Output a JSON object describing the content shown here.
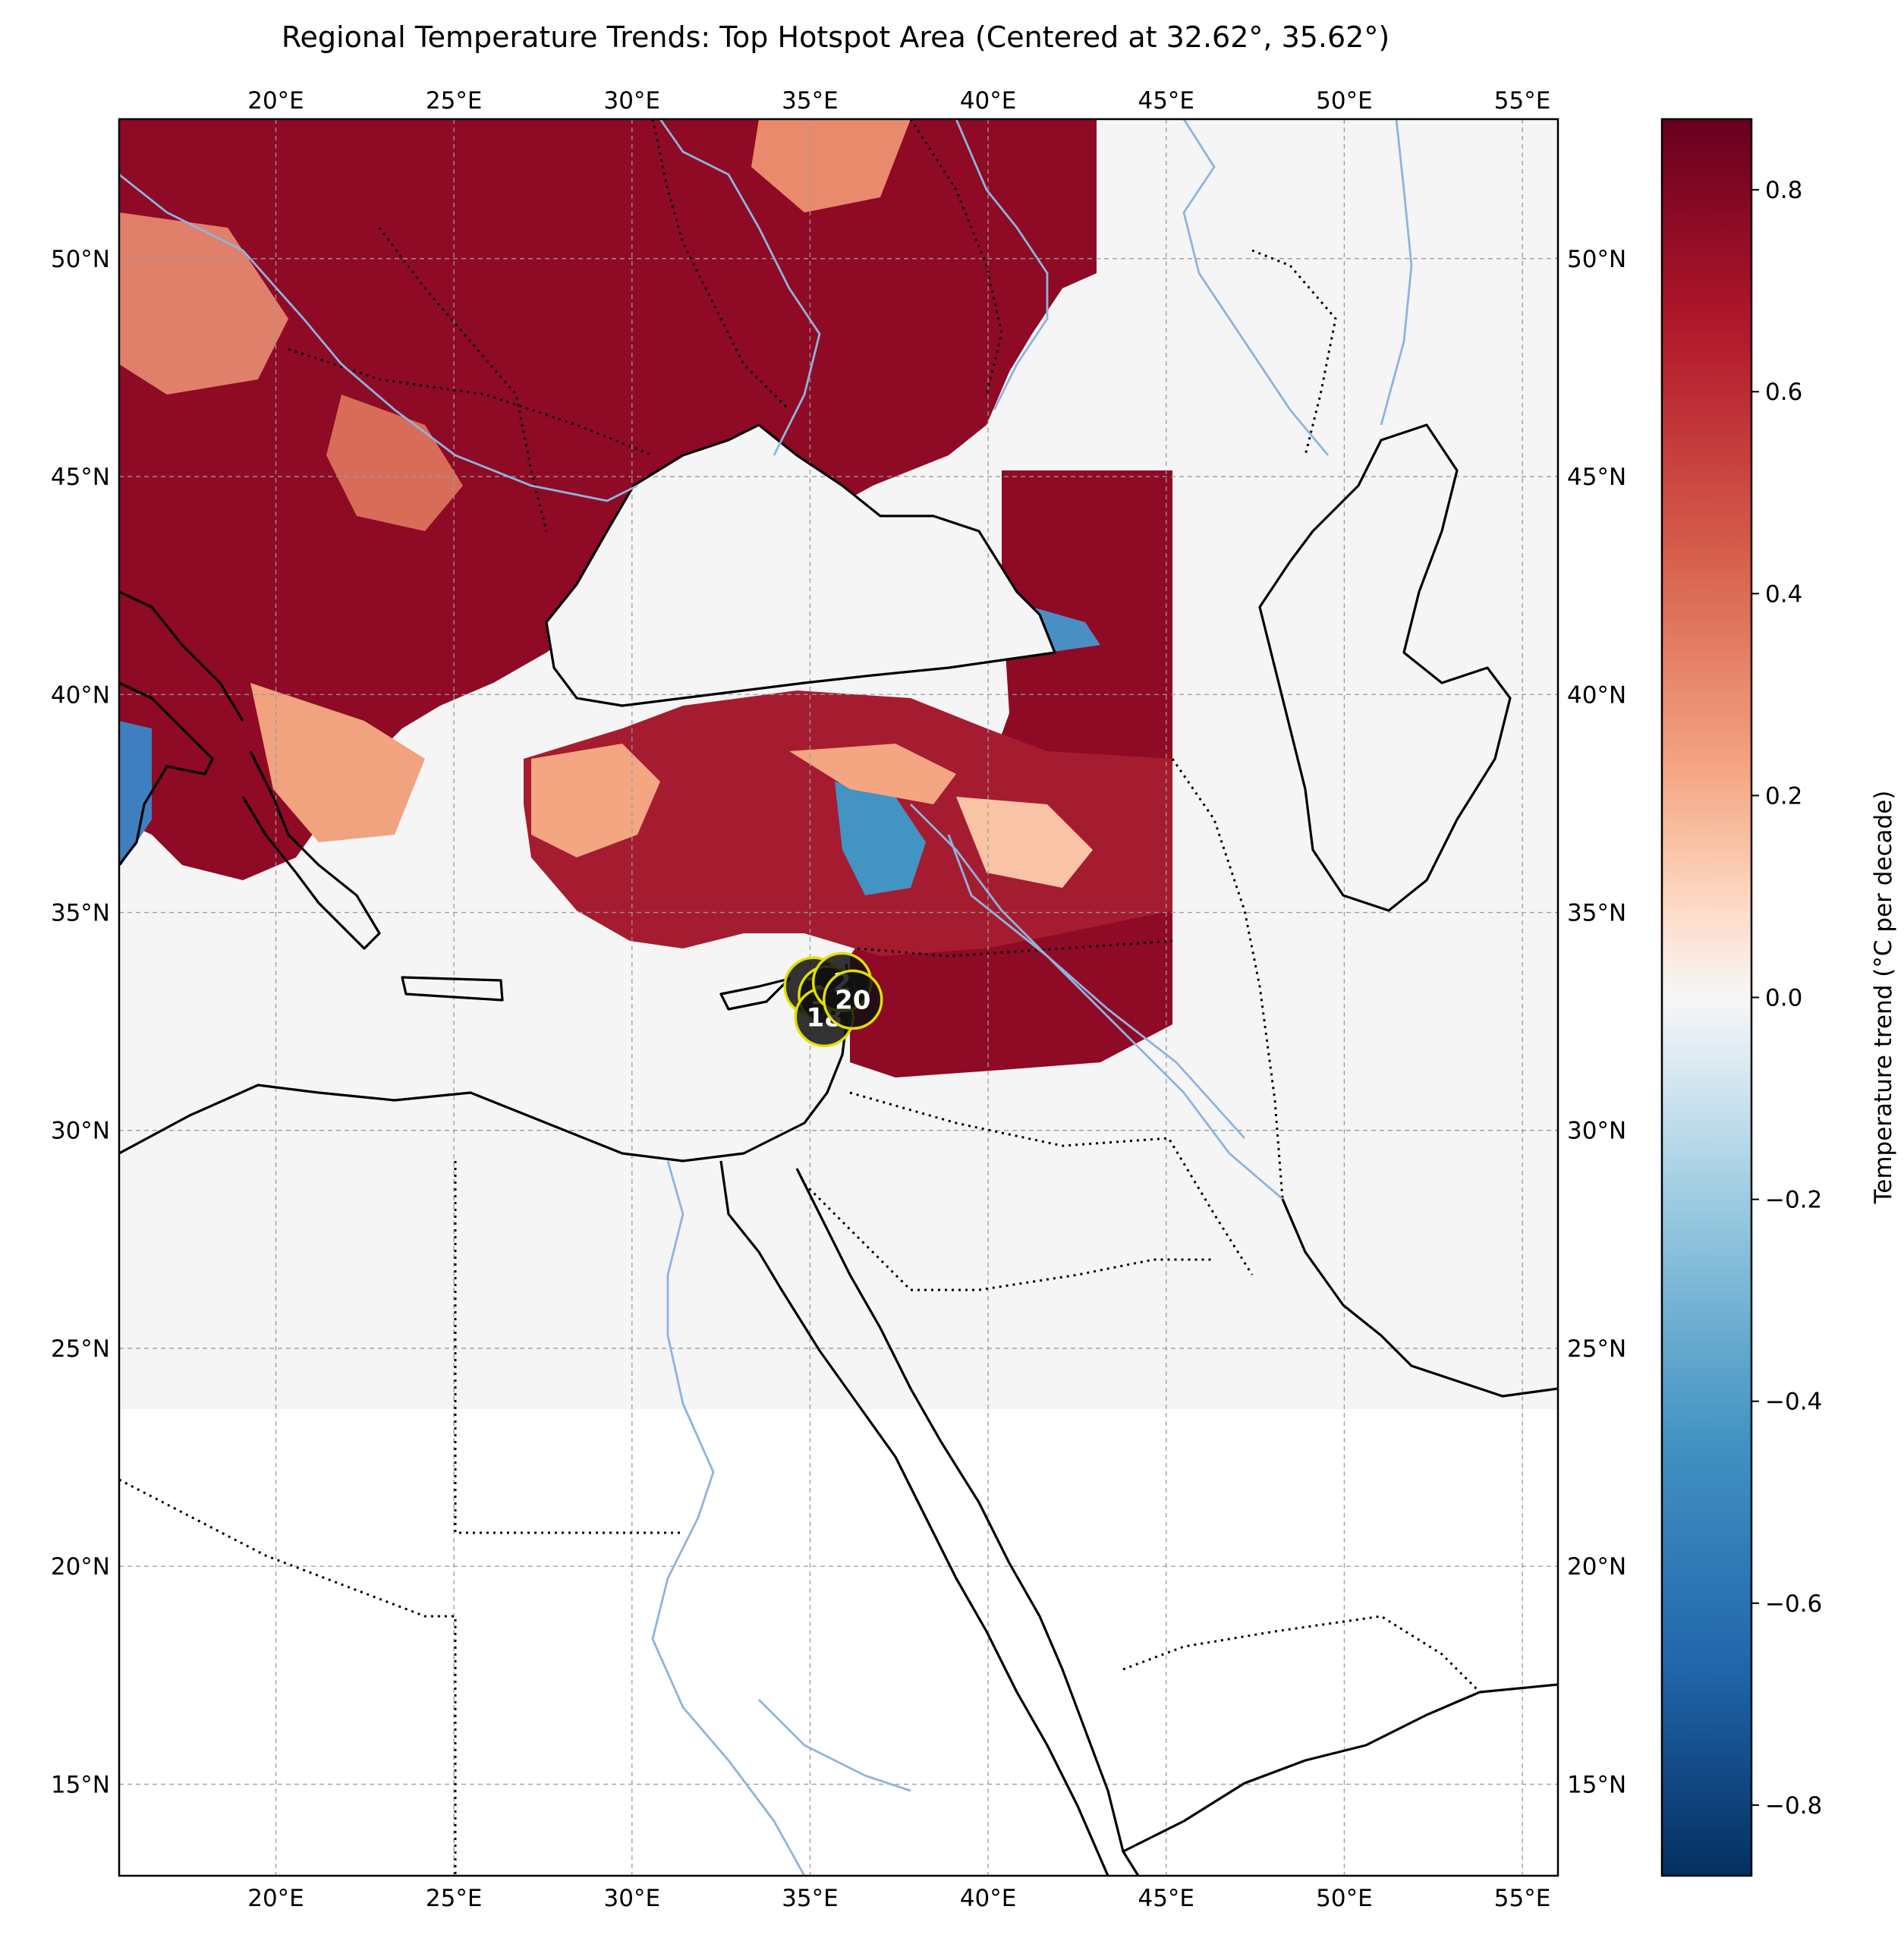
{
  "title": "Regional Temperature Trends: Top Hotspot Area (Centered at 32.62°, 35.62°)",
  "map": {
    "lon_range": [
      15.6,
      56.0
    ],
    "lat_range": [
      12.9,
      53.2
    ],
    "lon_ticks": [
      {
        "value": 20,
        "label": "20°E"
      },
      {
        "value": 25,
        "label": "25°E"
      },
      {
        "value": 30,
        "label": "30°E"
      },
      {
        "value": 35,
        "label": "35°E"
      },
      {
        "value": 40,
        "label": "40°E"
      },
      {
        "value": 45,
        "label": "45°E"
      },
      {
        "value": 50,
        "label": "50°E"
      },
      {
        "value": 55,
        "label": "55°E"
      }
    ],
    "lat_ticks": [
      {
        "value": 15,
        "label": "15°N"
      },
      {
        "value": 20,
        "label": "20°N"
      },
      {
        "value": 25,
        "label": "25°N"
      },
      {
        "value": 30,
        "label": "30°N"
      },
      {
        "value": 35,
        "label": "35°N"
      },
      {
        "value": 40,
        "label": "40°N"
      },
      {
        "value": 45,
        "label": "45°N"
      },
      {
        "value": 50,
        "label": "50°N"
      }
    ],
    "gridlines": true,
    "data_extent_south": 25.2,
    "hotspot_center": {
      "lat": 32.62,
      "lon": 35.62
    },
    "markers": [
      {
        "label": "1",
        "lon": 35.1,
        "lat": 33.3
      },
      {
        "label": "16",
        "lon": 35.5,
        "lat": 33.1
      },
      {
        "label": "18",
        "lon": 35.4,
        "lat": 32.6
      },
      {
        "label": "2",
        "lon": 35.9,
        "lat": 33.4
      },
      {
        "label": "20",
        "lon": 36.2,
        "lat": 33.0
      }
    ]
  },
  "colors": {
    "strong_warm": "#67001f",
    "warm": "#b2182b",
    "mid_warm": "#d6604d",
    "light_warm": "#f4a582",
    "neutral": "#f7f7f7",
    "light_cool": "#92c5de",
    "cool": "#4393c3",
    "strong_cool": "#2166ac",
    "coastline": "#000000",
    "river": "#8fb3de",
    "marker_fill": "#111111",
    "marker_edge": "#e0e000"
  },
  "colorbar": {
    "label": "Temperature trend (°C per decade)",
    "min": -0.87,
    "max": 0.87,
    "ticks": [
      {
        "value": 0.8,
        "label": "0.8"
      },
      {
        "value": 0.6,
        "label": "0.6"
      },
      {
        "value": 0.4,
        "label": "0.4"
      },
      {
        "value": 0.2,
        "label": "0.2"
      },
      {
        "value": 0.0,
        "label": "0.0"
      },
      {
        "value": -0.2,
        "label": "−0.2"
      },
      {
        "value": -0.4,
        "label": "−0.4"
      },
      {
        "value": -0.6,
        "label": "−0.6"
      },
      {
        "value": -0.8,
        "label": "−0.8"
      }
    ],
    "colormap": "RdBu_r"
  }
}
